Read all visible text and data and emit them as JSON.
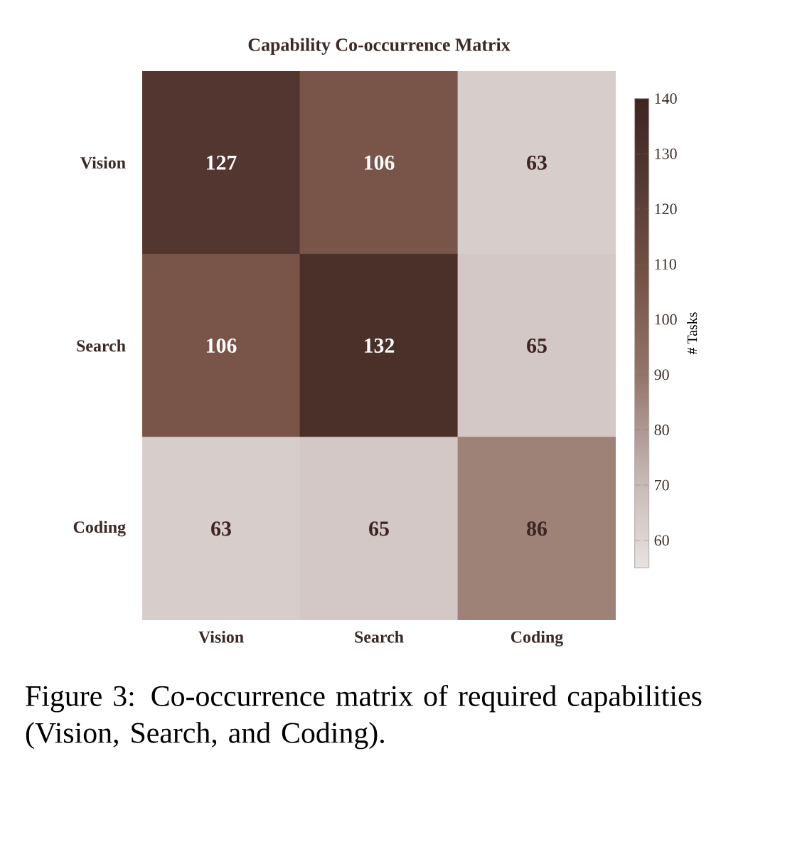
{
  "chart_data": {
    "type": "heatmap",
    "title": "Capability Co-occurrence Matrix",
    "categories": [
      "Vision",
      "Search",
      "Coding"
    ],
    "y_categories": [
      "Vision",
      "Search",
      "Coding"
    ],
    "cells": [
      [
        127,
        106,
        63
      ],
      [
        106,
        132,
        65
      ],
      [
        63,
        65,
        86
      ]
    ],
    "data_labels": true,
    "clim": [
      55,
      140
    ],
    "cticks": [
      60,
      70,
      80,
      90,
      100,
      110,
      120,
      130,
      140
    ],
    "clabel": "# Tasks",
    "annotations": [
      "Figure 3: Co-occurrence matrix of required capabilities (Vision, Search, and Coding)."
    ]
  }
}
